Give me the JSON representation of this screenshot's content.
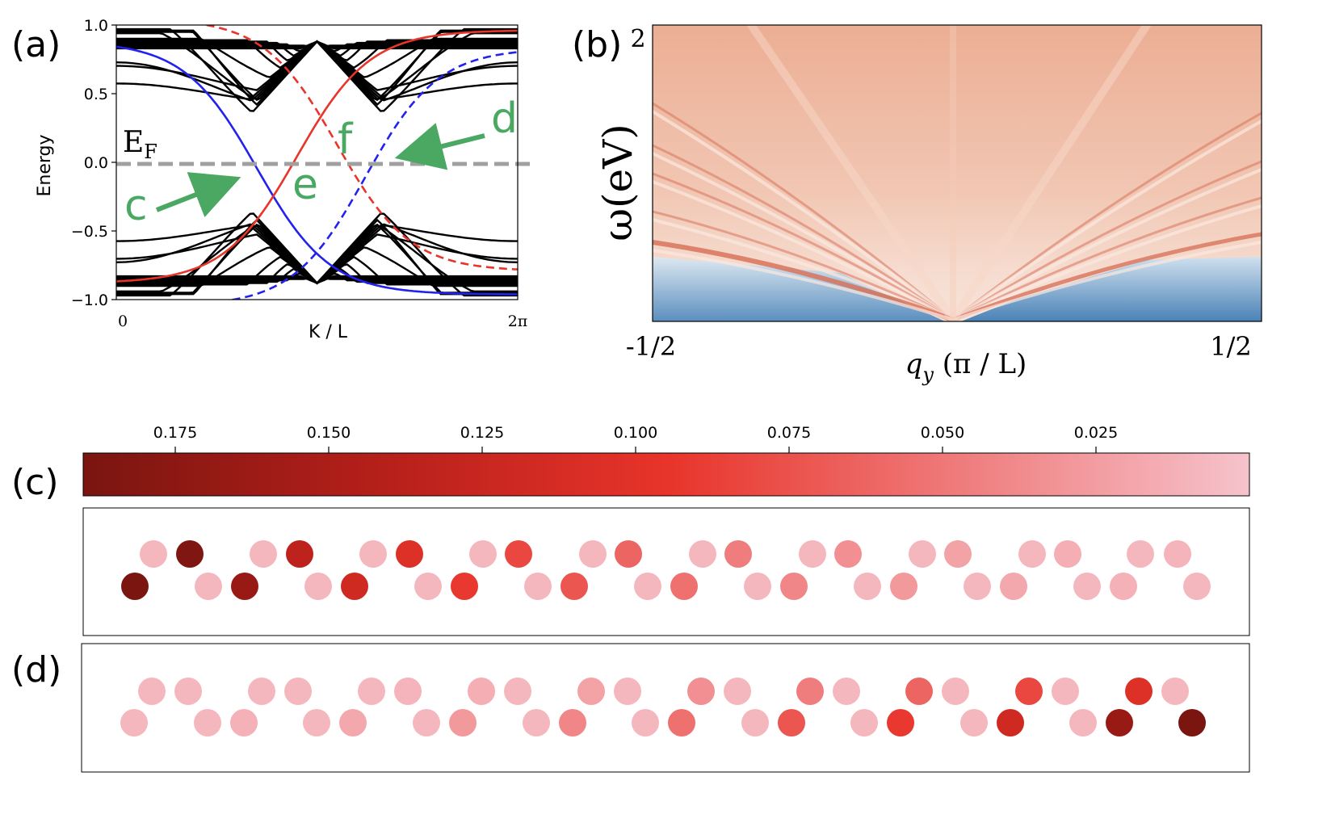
{
  "panels": {
    "a": {
      "label": "(a)"
    },
    "b": {
      "label": "(b)"
    },
    "c": {
      "label": "(c)"
    },
    "d": {
      "label": "(d)"
    }
  },
  "colors": {
    "blue": "#2222ee",
    "red": "#e8342a",
    "black": "#000000",
    "fermi": "#a0a0a0",
    "green": "#4aa862"
  },
  "chart_data": [
    {
      "type": "line",
      "panel": "a",
      "ylabel": "Energy",
      "xlabel": "K / L",
      "xticks": [
        "0",
        "2π"
      ],
      "yticks": [
        "1.0",
        "0.5",
        "0.0",
        "−0.5",
        "−1.0"
      ],
      "ylim": [
        -1.0,
        1.0
      ],
      "fermi_label": "E",
      "fermi_sub": "F",
      "fermi_level": -0.02,
      "annotations": [
        "c",
        "d",
        "e",
        "f"
      ],
      "series_colors": [
        "#000000",
        "#2222ee",
        "#e8342a"
      ]
    },
    {
      "type": "heatmap",
      "panel": "b",
      "ylabel": "ω(eV)",
      "xlabel_main": "q",
      "xlabel_sub": "y",
      "xlabel_rest": " (π / L)",
      "ytick": "2",
      "xticks": [
        "-1/2",
        "1/2"
      ]
    },
    {
      "type": "colorbar",
      "ticks": [
        "0.175",
        "0.150",
        "0.125",
        "0.100",
        "0.075",
        "0.050",
        "0.025"
      ],
      "tick_values": [
        0.175,
        0.15,
        0.125,
        0.1,
        0.075,
        0.05,
        0.025
      ],
      "range": [
        0.19,
        0.0
      ]
    },
    {
      "type": "scatter",
      "panel": "c",
      "top_row": [
        0.008,
        0.185,
        0.008,
        0.135,
        0.008,
        0.105,
        0.008,
        0.082,
        0.008,
        0.062,
        0.008,
        0.046,
        0.008,
        0.034,
        0.008,
        0.022,
        0.008,
        0.014,
        0.008,
        0.01
      ],
      "bottom_row": [
        0.19,
        0.008,
        0.165,
        0.008,
        0.118,
        0.008,
        0.092,
        0.008,
        0.072,
        0.008,
        0.054,
        0.008,
        0.04,
        0.008,
        0.028,
        0.008,
        0.018,
        0.008,
        0.012,
        0.008
      ]
    },
    {
      "type": "scatter",
      "panel": "d",
      "top_row": [
        0.008,
        0.008,
        0.008,
        0.008,
        0.008,
        0.01,
        0.014,
        0.008,
        0.022,
        0.008,
        0.034,
        0.008,
        0.046,
        0.008,
        0.062,
        0.008,
        0.082,
        0.008,
        0.105,
        0.008,
        0.135,
        0.008,
        0.165,
        0.008
      ],
      "bottom_row": [
        0.008,
        0.008,
        0.008,
        0.008,
        0.008,
        0.008,
        0.012,
        0.008,
        0.018,
        0.008,
        0.028,
        0.008,
        0.04,
        0.008,
        0.054,
        0.008,
        0.072,
        0.008,
        0.092,
        0.008,
        0.118,
        0.008,
        0.165,
        0.19
      ]
    }
  ]
}
